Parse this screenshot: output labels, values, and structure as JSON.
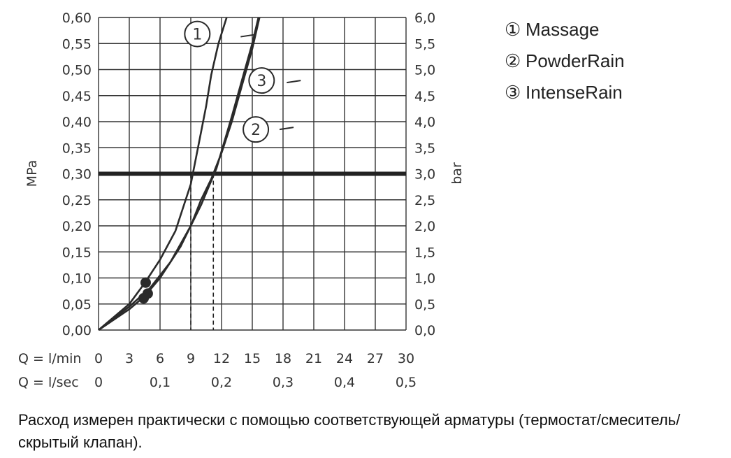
{
  "chart_data": {
    "type": "line",
    "title": "",
    "ylabel_left": "MPa",
    "ylabel_right": "bar",
    "xlim": [
      0,
      30
    ],
    "ylim": [
      0,
      0.6
    ],
    "grid": true,
    "x_axis_rows": [
      {
        "label": "Q = l/min",
        "ticks": [
          0,
          3,
          6,
          9,
          12,
          15,
          18,
          21,
          24,
          27,
          30
        ],
        "tick_labels": [
          "0",
          "3",
          "6",
          "9",
          "12",
          "15",
          "18",
          "21",
          "24",
          "27",
          "30"
        ]
      },
      {
        "label": "Q = l/sec",
        "ticks": [
          0,
          6,
          12,
          18,
          24,
          30
        ],
        "tick_labels": [
          "0",
          "0,1",
          "0,2",
          "0,3",
          "0,4",
          "0,5"
        ]
      }
    ],
    "y_ticks": [
      0,
      0.05,
      0.1,
      0.15,
      0.2,
      0.25,
      0.3,
      0.35,
      0.4,
      0.45,
      0.5,
      0.55,
      0.6
    ],
    "y_tick_labels_left": [
      "0,00",
      "0,05",
      "0,10",
      "0,15",
      "0,20",
      "0,25",
      "0,30",
      "0,35",
      "0,40",
      "0,45",
      "0,50",
      "0,55",
      "0,60"
    ],
    "y_tick_labels_right": [
      "0,0",
      "0,5",
      "1,0",
      "1,5",
      "2,0",
      "2,5",
      "3,0",
      "3,5",
      "4,0",
      "4,5",
      "5,0",
      "5,5",
      "6,0"
    ],
    "reference_line": {
      "y": 0.3
    },
    "drop_lines": [
      {
        "x": 9.0,
        "y": 0.3
      },
      {
        "x": 11.2,
        "y": 0.3
      }
    ],
    "series": [
      {
        "marker": "1",
        "points": [
          [
            0,
            0
          ],
          [
            3,
            0.05
          ],
          [
            4.5,
            0.09
          ],
          [
            6,
            0.135
          ],
          [
            7.5,
            0.19
          ],
          [
            9,
            0.28
          ],
          [
            10,
            0.38
          ],
          [
            10.5,
            0.43
          ],
          [
            11,
            0.49
          ],
          [
            11.7,
            0.55
          ],
          [
            12.5,
            0.6
          ]
        ],
        "start_point": [
          4.6,
          0.091
        ]
      },
      {
        "marker": "2",
        "points": [
          [
            0,
            0
          ],
          [
            3,
            0.045
          ],
          [
            5,
            0.08
          ],
          [
            7,
            0.13
          ],
          [
            9,
            0.2
          ],
          [
            10,
            0.25
          ],
          [
            11,
            0.29
          ],
          [
            12,
            0.34
          ],
          [
            13,
            0.4
          ],
          [
            14,
            0.47
          ],
          [
            15,
            0.54
          ],
          [
            15.7,
            0.6
          ]
        ],
        "start_point": [
          4.8,
          0.07
        ]
      },
      {
        "marker": "3",
        "points": [
          [
            0,
            0
          ],
          [
            3,
            0.04
          ],
          [
            4.5,
            0.065
          ],
          [
            6,
            0.1
          ],
          [
            8,
            0.16
          ],
          [
            10,
            0.24
          ],
          [
            11.5,
            0.31
          ],
          [
            13,
            0.41
          ],
          [
            14,
            0.48
          ],
          [
            15,
            0.55
          ],
          [
            15.6,
            0.6
          ]
        ],
        "start_point": [
          4.4,
          0.061
        ]
      }
    ],
    "annotations": [
      {
        "marker": "1",
        "at": [
          12.5,
          0.563
        ]
      },
      {
        "marker": "2",
        "at": [
          16.3,
          0.385
        ]
      },
      {
        "marker": "3",
        "at": [
          17.0,
          0.475
        ]
      }
    ]
  },
  "legend": [
    {
      "marker": "①",
      "label": "Massage"
    },
    {
      "marker": "②",
      "label": "PowderRain"
    },
    {
      "marker": "③",
      "label": "IntenseRain"
    }
  ],
  "caption": "Расход измерен практически с помощью соответствующей арматуры (термостат/смеситель/скрытый клапан)."
}
